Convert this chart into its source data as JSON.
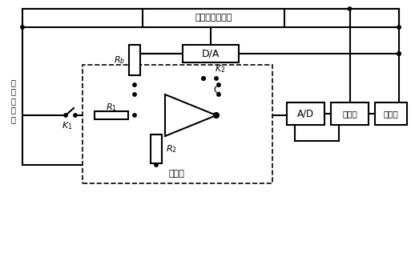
{
  "bg_color": "#ffffff",
  "line_color": "#000000",
  "lw": 1.5,
  "box_labels": {
    "input_detector": "输入信号检测器",
    "da": "D/A",
    "ad": "A/D",
    "mcu": "单片机",
    "display": "显示器",
    "integrator_label": "积分器"
  },
  "input_port_text": "输\n入\n信\n号\n端"
}
